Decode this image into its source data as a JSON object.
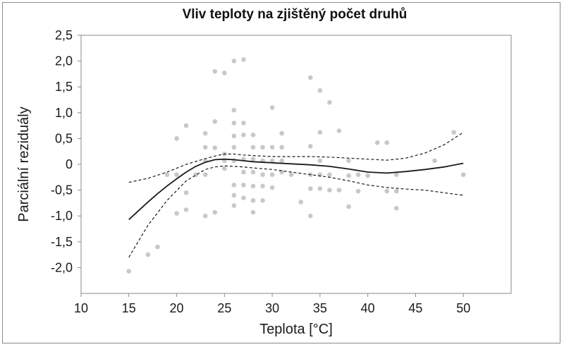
{
  "chart_data": {
    "type": "scatter",
    "title": "Vliv teploty na zjištěný počet druhů",
    "xlabel": "Teplota [°C]",
    "ylabel": "Parciální reziduály",
    "xlim": [
      10,
      55
    ],
    "ylim": [
      -2.5,
      2.5
    ],
    "x_ticks": [
      "10",
      "15",
      "20",
      "25",
      "30",
      "35",
      "40",
      "45",
      "50"
    ],
    "y_ticks": [
      "2,5",
      "2,0",
      "1,5",
      "1,0",
      "0,5",
      "0",
      "-0,5",
      "-1,0",
      "-1,5",
      "-2,0"
    ],
    "y_tick_values": [
      2.5,
      2.0,
      1.5,
      1.0,
      0.5,
      0,
      -0.5,
      -1.0,
      -1.5,
      -2.0
    ],
    "x_tick_values": [
      10,
      15,
      20,
      25,
      30,
      35,
      40,
      45,
      50
    ],
    "grid": false,
    "series": [
      {
        "kind": "points",
        "color": "#c8c8c8",
        "points": [
          [
            15,
            -2.07
          ],
          [
            17,
            -1.75
          ],
          [
            18,
            -1.6
          ],
          [
            19,
            -0.2
          ],
          [
            20,
            0.5
          ],
          [
            20,
            -0.95
          ],
          [
            20,
            -0.2
          ],
          [
            21,
            0.75
          ],
          [
            21,
            -0.88
          ],
          [
            21,
            -0.55
          ],
          [
            22,
            -0.2
          ],
          [
            23,
            0.6
          ],
          [
            23,
            0.33
          ],
          [
            23,
            -0.2
          ],
          [
            23,
            -1.0
          ],
          [
            23,
            0.07
          ],
          [
            24,
            1.8
          ],
          [
            24,
            0.83
          ],
          [
            24,
            0.32
          ],
          [
            24,
            -0.93
          ],
          [
            25,
            1.77
          ],
          [
            25,
            0.2
          ],
          [
            25,
            0.07
          ],
          [
            25,
            -0.08
          ],
          [
            26,
            2.0
          ],
          [
            26,
            1.05
          ],
          [
            26,
            0.8
          ],
          [
            26,
            0.55
          ],
          [
            26,
            0.33
          ],
          [
            26,
            0.07
          ],
          [
            26,
            -0.4
          ],
          [
            26,
            -0.6
          ],
          [
            26,
            -0.8
          ],
          [
            27,
            2.03
          ],
          [
            27,
            0.8
          ],
          [
            27,
            0.57
          ],
          [
            27,
            0.1
          ],
          [
            27,
            -0.15
          ],
          [
            27,
            -0.4
          ],
          [
            27,
            -0.65
          ],
          [
            28,
            0.57
          ],
          [
            28,
            0.33
          ],
          [
            28,
            0.1
          ],
          [
            28,
            -0.15
          ],
          [
            28,
            -0.42
          ],
          [
            28,
            -0.7
          ],
          [
            28,
            -0.93
          ],
          [
            29,
            0.33
          ],
          [
            29,
            0.07
          ],
          [
            29,
            -0.2
          ],
          [
            29,
            -0.42
          ],
          [
            29,
            -0.7
          ],
          [
            30,
            1.1
          ],
          [
            30,
            0.33
          ],
          [
            30,
            0.07
          ],
          [
            30,
            -0.2
          ],
          [
            30,
            -0.45
          ],
          [
            31,
            0.6
          ],
          [
            31,
            0.33
          ],
          [
            31,
            0.07
          ],
          [
            31,
            -0.15
          ],
          [
            32,
            -0.2
          ],
          [
            33,
            -0.73
          ],
          [
            34,
            1.68
          ],
          [
            34,
            0.35
          ],
          [
            34,
            -0.2
          ],
          [
            34,
            -0.47
          ],
          [
            34,
            -1.0
          ],
          [
            35,
            1.43
          ],
          [
            35,
            0.62
          ],
          [
            35,
            0.07
          ],
          [
            35,
            -0.2
          ],
          [
            35,
            -0.47
          ],
          [
            36,
            1.2
          ],
          [
            36,
            -0.2
          ],
          [
            36,
            -0.5
          ],
          [
            37,
            0.65
          ],
          [
            37,
            -0.5
          ],
          [
            38,
            0.07
          ],
          [
            38,
            -0.22
          ],
          [
            38,
            -0.82
          ],
          [
            39,
            -0.2
          ],
          [
            39,
            -0.52
          ],
          [
            40,
            -0.22
          ],
          [
            41,
            0.42
          ],
          [
            42,
            0.42
          ],
          [
            42,
            -0.52
          ],
          [
            43,
            -0.2
          ],
          [
            43,
            -0.52
          ],
          [
            43,
            -0.85
          ],
          [
            47,
            0.07
          ],
          [
            49,
            0.62
          ],
          [
            50,
            -0.2
          ]
        ]
      },
      {
        "kind": "line",
        "style": "solid",
        "color": "#1a1a1a",
        "x": [
          15,
          16,
          17,
          18,
          19,
          20,
          21,
          22,
          23,
          24,
          25,
          26,
          27,
          28,
          30,
          32,
          34,
          36,
          38,
          40,
          42,
          44,
          46,
          48,
          50
        ],
        "y": [
          -1.07,
          -0.9,
          -0.73,
          -0.57,
          -0.42,
          -0.28,
          -0.15,
          -0.04,
          0.04,
          0.09,
          0.1,
          0.09,
          0.07,
          0.05,
          0.03,
          0.01,
          -0.01,
          -0.04,
          -0.09,
          -0.15,
          -0.17,
          -0.14,
          -0.1,
          -0.05,
          0.02
        ]
      },
      {
        "kind": "line",
        "style": "dashed",
        "color": "#1a1a1a",
        "x": [
          15,
          17,
          19,
          21,
          23,
          24,
          25,
          26,
          27,
          28,
          30,
          32,
          34,
          36,
          38,
          40,
          42,
          44,
          46,
          48,
          50
        ],
        "y": [
          -0.35,
          -0.27,
          -0.15,
          0.0,
          0.11,
          0.16,
          0.2,
          0.2,
          0.18,
          0.17,
          0.15,
          0.15,
          0.15,
          0.14,
          0.12,
          0.1,
          0.08,
          0.12,
          0.22,
          0.38,
          0.62
        ]
      },
      {
        "kind": "line",
        "style": "dashed",
        "color": "#1a1a1a",
        "x": [
          15,
          17,
          19,
          21,
          23,
          24,
          25,
          26,
          27,
          28,
          30,
          32,
          34,
          36,
          38,
          40,
          42,
          44,
          46,
          48,
          50
        ],
        "y": [
          -1.8,
          -1.18,
          -0.7,
          -0.32,
          -0.1,
          -0.05,
          -0.03,
          -0.04,
          -0.05,
          -0.07,
          -0.1,
          -0.15,
          -0.2,
          -0.25,
          -0.32,
          -0.4,
          -0.45,
          -0.48,
          -0.5,
          -0.55,
          -0.6
        ]
      }
    ]
  }
}
